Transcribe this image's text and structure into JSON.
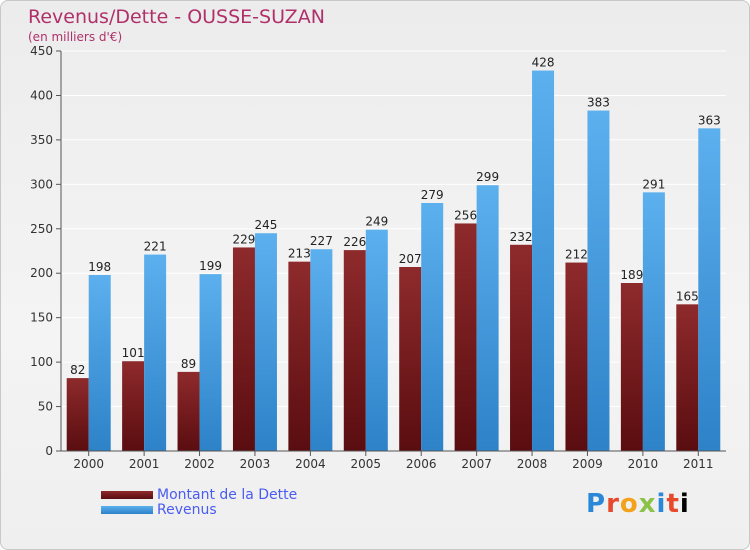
{
  "header": {
    "title": "Revenus/Dette - OUSSE-SUZAN",
    "subtitle": "(en milliers d'€)"
  },
  "legend": {
    "items": [
      {
        "label": "Montant de la Dette",
        "color": "#7a1f22"
      },
      {
        "label": "Revenus",
        "color": "#4aa3e8"
      }
    ]
  },
  "logo": {
    "text": "Proxiti",
    "letters": [
      "P",
      "r",
      "o",
      "x",
      "i",
      "t",
      "i"
    ]
  },
  "chart_data": {
    "type": "bar",
    "categories": [
      "2000",
      "2001",
      "2002",
      "2003",
      "2004",
      "2005",
      "2006",
      "2007",
      "2008",
      "2009",
      "2010",
      "2011"
    ],
    "series": [
      {
        "name": "Montant de la Dette",
        "values": [
          82,
          101,
          89,
          229,
          213,
          226,
          207,
          256,
          232,
          212,
          189,
          165
        ],
        "color": "#7a1f22"
      },
      {
        "name": "Revenus",
        "values": [
          198,
          221,
          199,
          245,
          227,
          249,
          279,
          299,
          428,
          383,
          291,
          363
        ],
        "color": "#4aa3e8"
      }
    ],
    "yticks": [
      0,
      50,
      100,
      150,
      200,
      250,
      300,
      350,
      400,
      450
    ],
    "ylim": [
      0,
      450
    ]
  }
}
